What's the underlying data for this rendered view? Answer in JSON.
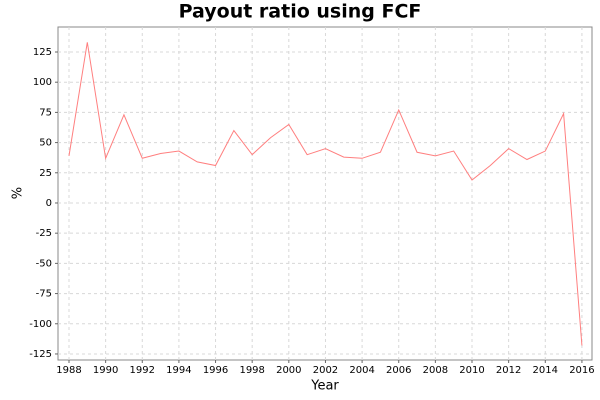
{
  "chart_data": {
    "type": "line",
    "title": "Payout ratio using FCF",
    "xlabel": "Year",
    "ylabel": "%",
    "x": [
      1988,
      1989,
      1990,
      1991,
      1992,
      1993,
      1994,
      1995,
      1996,
      1997,
      1998,
      1999,
      2000,
      2001,
      2002,
      2003,
      2004,
      2005,
      2006,
      2007,
      2008,
      2009,
      2010,
      2011,
      2012,
      2013,
      2014,
      2015,
      2016
    ],
    "series": [
      {
        "color": "#ff7f7f",
        "values": [
          39,
          133,
          37,
          73,
          37,
          41,
          43,
          34,
          31,
          60,
          40,
          54,
          65,
          40,
          45,
          38,
          37,
          42,
          77,
          42,
          39,
          43,
          19,
          31,
          45,
          36,
          43,
          74,
          -118
        ]
      }
    ],
    "xlim": [
      1987.4,
      2016.55
    ],
    "xticks": [
      1988,
      1990,
      1992,
      1994,
      1996,
      1998,
      2000,
      2002,
      2004,
      2006,
      2008,
      2010,
      2012,
      2014,
      2016
    ],
    "ylim": [
      -130,
      145.7
    ],
    "yticks": [
      -125,
      -100,
      -75,
      -50,
      -25,
      0,
      25,
      50,
      75,
      100,
      125
    ],
    "grid": true
  }
}
